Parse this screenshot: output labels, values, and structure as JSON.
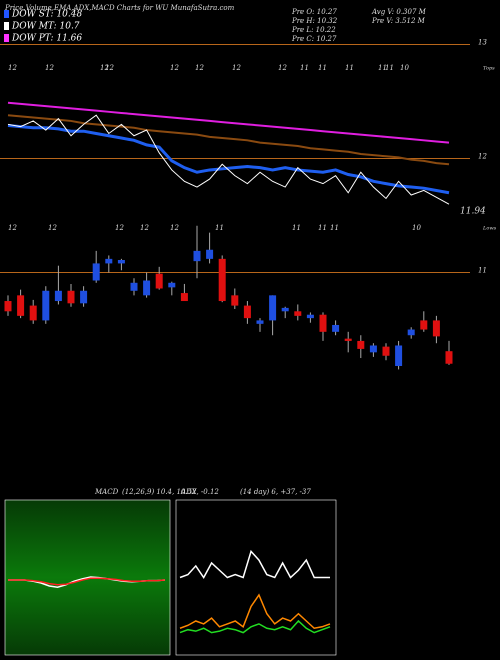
{
  "chart_data": [
    {
      "type": "candlestick",
      "title": "Price,Volume,EMA,ADX,MACD Charts for WU MunafaSutra.com",
      "legend": [
        {
          "label": "DOW ST: 10.48",
          "color": "#2255ff"
        },
        {
          "label": "DOW MT: 10.7",
          "color": "#ffffff"
        },
        {
          "label": "DOW PT: 11.66",
          "color": "#ff33ff"
        }
      ],
      "info": [
        "Pre  O: 10.27",
        "Pre  H: 10.32",
        "Pre  L: 10.22",
        "Pre  C: 10.27",
        "Avg V: 0.307 M",
        "Pre  V: 3.512 M"
      ],
      "categories": [
        null,
        null,
        null,
        null,
        null,
        null,
        null,
        null,
        null,
        null,
        null,
        null,
        null,
        null,
        null,
        null,
        null,
        null,
        null,
        null,
        null,
        null,
        null,
        null,
        null,
        null,
        null,
        null,
        null,
        null,
        null,
        null,
        null,
        null,
        null,
        null
      ],
      "open": [
        10.75,
        10.8,
        10.71,
        10.58,
        10.75,
        10.84,
        10.73,
        10.93,
        11.08,
        11.08,
        10.84,
        10.8,
        10.99,
        10.87,
        10.82,
        11.1,
        11.12,
        11.12,
        10.8,
        10.71,
        10.55,
        10.58,
        10.66,
        10.66,
        10.6,
        10.63,
        10.48,
        10.42,
        10.4,
        10.3,
        10.35,
        10.18,
        10.45,
        10.58,
        10.58,
        10.31
      ],
      "high": [
        10.8,
        10.85,
        10.76,
        10.88,
        11.06,
        10.9,
        10.88,
        11.19,
        11.15,
        11.12,
        10.95,
        11.0,
        11.05,
        10.92,
        10.9,
        11.41,
        11.35,
        11.15,
        10.86,
        10.75,
        10.6,
        10.8,
        10.7,
        10.72,
        10.65,
        10.65,
        10.58,
        10.48,
        10.45,
        10.38,
        10.38,
        10.4,
        10.52,
        10.66,
        10.62,
        10.4
      ],
      "low": [
        10.62,
        10.6,
        10.55,
        10.55,
        10.72,
        10.7,
        10.7,
        10.91,
        11.0,
        11.02,
        10.8,
        10.78,
        10.85,
        10.8,
        10.76,
        10.95,
        11.08,
        10.74,
        10.68,
        10.55,
        10.48,
        10.45,
        10.6,
        10.58,
        10.56,
        10.4,
        10.45,
        10.3,
        10.25,
        10.26,
        10.23,
        10.15,
        10.42,
        10.48,
        10.38,
        10.19
      ],
      "close": [
        10.66,
        10.62,
        10.58,
        10.84,
        10.84,
        10.73,
        10.84,
        11.08,
        11.12,
        11.11,
        10.91,
        10.93,
        10.86,
        10.91,
        10.75,
        11.19,
        11.2,
        10.75,
        10.71,
        10.6,
        10.58,
        10.8,
        10.69,
        10.62,
        10.63,
        10.48,
        10.54,
        10.4,
        10.33,
        10.36,
        10.27,
        10.36,
        10.5,
        10.5,
        10.44,
        10.2
      ],
      "up_color": "#1f4fe0",
      "down_color": "#e01010",
      "lines": [
        {
          "color": "#e01ee0",
          "values": [
            12.49,
            12.48,
            12.47,
            12.46,
            12.45,
            12.44,
            12.43,
            12.42,
            12.41,
            12.4,
            12.39,
            12.38,
            12.37,
            12.36,
            12.35,
            12.34,
            12.33,
            12.32,
            12.31,
            12.3,
            12.29,
            12.28,
            12.27,
            12.26,
            12.25,
            12.24,
            12.23,
            12.22,
            12.21,
            12.2,
            12.19,
            12.18,
            12.17,
            12.16,
            12.15,
            12.14
          ]
        },
        {
          "color": "#8a4a10",
          "values": [
            12.38,
            12.37,
            12.36,
            12.35,
            12.34,
            12.33,
            12.31,
            12.3,
            12.29,
            12.28,
            12.27,
            12.25,
            12.24,
            12.23,
            12.22,
            12.21,
            12.19,
            12.18,
            12.17,
            12.16,
            12.14,
            12.13,
            12.12,
            12.11,
            12.09,
            12.08,
            12.07,
            12.06,
            12.04,
            12.03,
            12.02,
            12.01,
            11.99,
            11.98,
            11.96,
            11.95
          ]
        },
        {
          "color": "#1f5ff0",
          "values": [
            12.29,
            12.28,
            12.27,
            12.27,
            12.26,
            12.24,
            12.24,
            12.22,
            12.2,
            12.18,
            12.16,
            12.12,
            12.1,
            11.98,
            11.92,
            11.88,
            11.9,
            11.91,
            11.92,
            11.93,
            11.92,
            11.9,
            11.92,
            11.9,
            11.89,
            11.88,
            11.9,
            11.86,
            11.84,
            11.8,
            11.78,
            11.76,
            11.75,
            11.74,
            11.72,
            11.7
          ]
        },
        {
          "color": "#ffffff",
          "values": [
            12.3,
            12.28,
            12.33,
            12.25,
            12.35,
            12.2,
            12.3,
            12.38,
            12.22,
            12.3,
            12.2,
            12.25,
            12.05,
            11.9,
            11.8,
            11.75,
            11.82,
            11.95,
            11.85,
            11.78,
            11.88,
            11.8,
            11.75,
            11.92,
            11.82,
            11.78,
            11.85,
            11.7,
            11.88,
            11.75,
            11.65,
            11.8,
            11.68,
            11.72,
            11.66,
            11.6
          ]
        }
      ],
      "ylim": [
        9.18,
        13.04
      ],
      "yticks": [
        13,
        12,
        11
      ],
      "grid": true,
      "grid_color": "#b8661a",
      "annotation": "11.94",
      "tops_label": "Tops",
      "tops": [
        "12",
        "12",
        "12",
        "12",
        "12",
        "12",
        "12",
        "12",
        "11",
        "11",
        "11",
        "11",
        "11",
        "10"
      ],
      "lows_label": "Lows",
      "lows": [
        "12",
        "12",
        "12",
        "12",
        "12",
        "11",
        "11",
        "11",
        "11",
        "10"
      ]
    },
    {
      "type": "line",
      "title": "MACD",
      "subtitle": "(12,26,9) 10.4, 10.52, -0.12",
      "series": [
        {
          "color": "#ffffff",
          "values": [
            0,
            0,
            0,
            -0.02,
            -0.05,
            -0.1,
            -0.12,
            -0.08,
            -0.02,
            0.02,
            0.05,
            0.04,
            0.02,
            0,
            -0.02,
            -0.03,
            -0.02,
            -0.01,
            -0.01,
            0
          ]
        },
        {
          "color": "#ff2020",
          "values": [
            0,
            0,
            0,
            -0.01,
            -0.03,
            -0.06,
            -0.08,
            -0.07,
            -0.04,
            0,
            0.03,
            0.03,
            0.02,
            0.01,
            -0.01,
            -0.02,
            -0.02,
            -0.01,
            -0.01,
            0
          ]
        }
      ]
    },
    {
      "type": "line",
      "title": "ADX",
      "subtitle": "(14  day) 6, +37, -37",
      "series": [
        {
          "color": "#ffffff",
          "values": [
            50,
            52,
            58,
            50,
            60,
            55,
            50,
            52,
            50,
            68,
            62,
            52,
            50,
            60,
            50,
            55,
            62,
            50,
            50,
            50
          ]
        },
        {
          "color": "#ff8800",
          "values": [
            15,
            17,
            20,
            18,
            22,
            16,
            18,
            20,
            16,
            30,
            38,
            25,
            18,
            22,
            20,
            25,
            20,
            15,
            16,
            18
          ]
        },
        {
          "color": "#22dd22",
          "values": [
            12,
            14,
            13,
            15,
            12,
            13,
            15,
            14,
            12,
            16,
            18,
            15,
            14,
            16,
            14,
            20,
            15,
            12,
            14,
            16
          ]
        }
      ]
    }
  ]
}
